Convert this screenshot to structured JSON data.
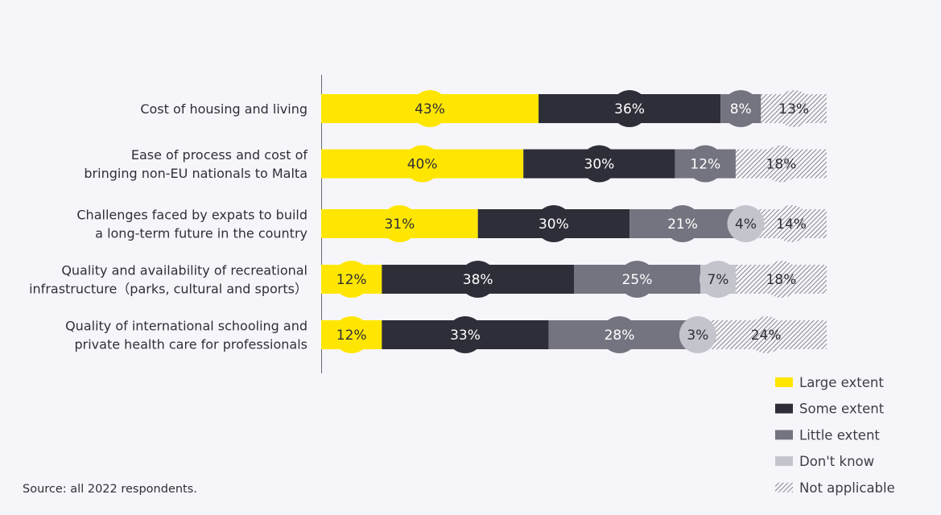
{
  "chart_data": {
    "type": "bar",
    "orientation": "horizontal",
    "stacked": true,
    "categories": [
      [
        "Cost of housing and living"
      ],
      [
        "Ease of process and cost of",
        "bringing non-EU nationals to Malta"
      ],
      [
        "Challenges faced by expats to build",
        "a long-term future in the country"
      ],
      [
        "Quality and availability of recreational",
        "infrastructure（parks, cultural and sports）"
      ],
      [
        "Quality of international schooling and",
        "private health care for professionals"
      ]
    ],
    "series": [
      {
        "name": "Large extent",
        "color": "#ffe600",
        "text_color": "#2e2e38",
        "values": [
          43,
          40,
          31,
          12,
          12
        ]
      },
      {
        "name": "Some extent",
        "color": "#2e2e38",
        "text_color": "#ffffff",
        "values": [
          36,
          30,
          30,
          38,
          33
        ]
      },
      {
        "name": "Little extent",
        "color": "#747480",
        "text_color": "#ffffff",
        "values": [
          8,
          12,
          21,
          25,
          28
        ]
      },
      {
        "name": "Don't know",
        "color": "#c4c4cd",
        "text_color": "#2e2e38",
        "values": [
          0,
          0,
          4,
          7,
          3
        ]
      },
      {
        "name": "Not applicable",
        "color": "hatch",
        "text_color": "#2e2e38",
        "values": [
          13,
          18,
          14,
          18,
          24
        ]
      }
    ],
    "value_suffix": "%",
    "xlim": [
      0,
      100
    ],
    "legend_position": "bottom-right",
    "grid": false
  },
  "source": "Source: all 2022 respondents."
}
